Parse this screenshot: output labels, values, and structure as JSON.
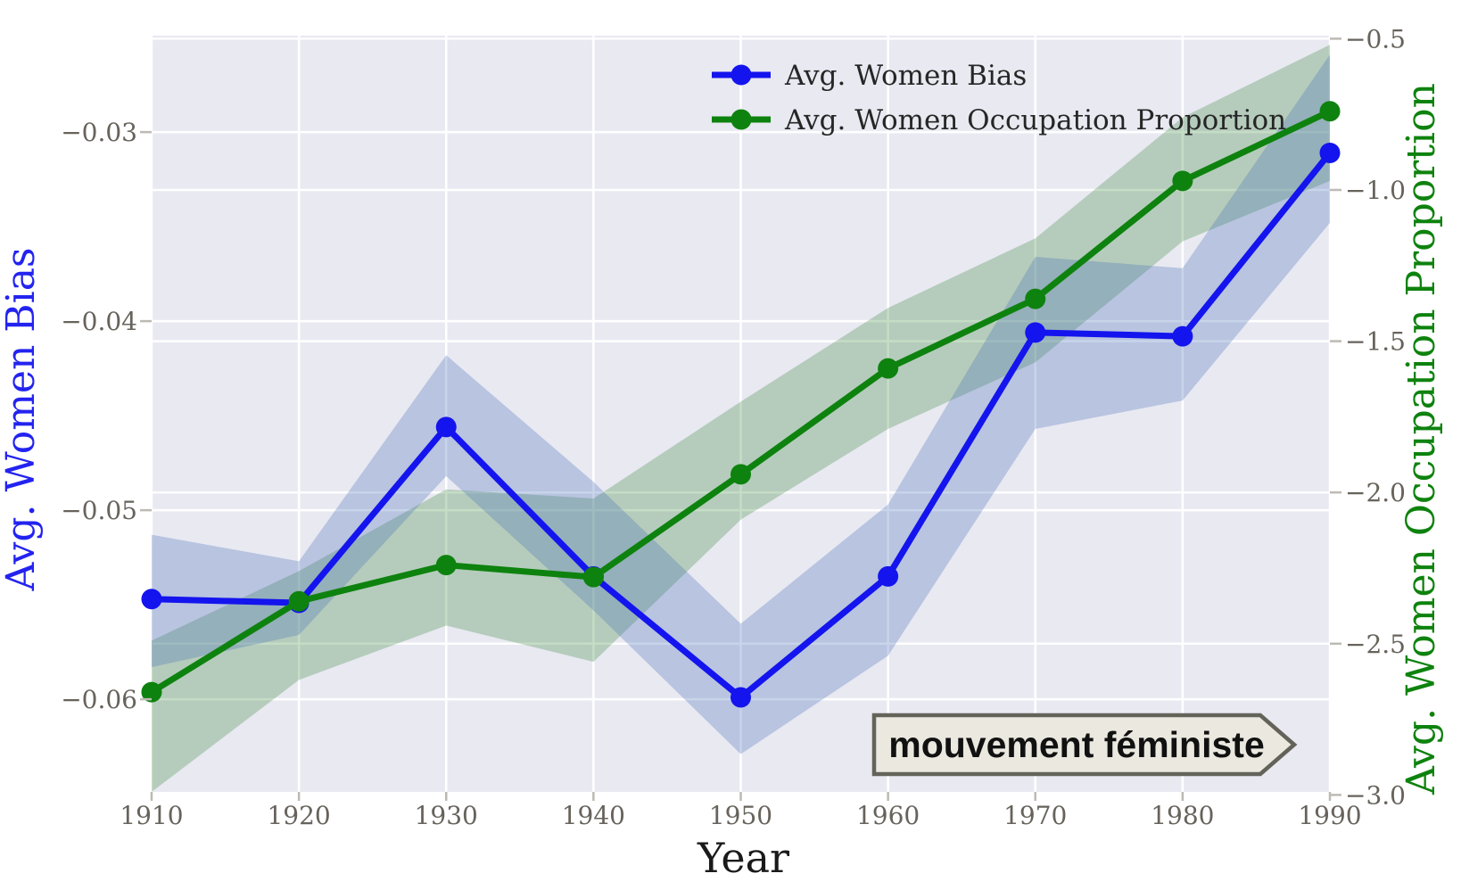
{
  "figure": {
    "background": "#ffffff",
    "plot_background": "#e9e9f2",
    "grid_color": "#ffffff",
    "tick_color": "#67635c",
    "tick_mark_color": "#bdbab4"
  },
  "chart_data": {
    "type": "line",
    "x": [
      1910,
      1920,
      1930,
      1940,
      1950,
      1960,
      1970,
      1980,
      1990
    ],
    "x_tick_labels": [
      "1910",
      "1920",
      "1930",
      "1940",
      "1950",
      "1960",
      "1970",
      "1980",
      "1990"
    ],
    "xlabel": "Year",
    "xlim": [
      1910,
      1990
    ],
    "grid": true,
    "left_axis": {
      "label": "Avg. Women Bias",
      "color": "#2323f0",
      "ylim": [
        -0.0649,
        -0.0249
      ],
      "ticks": [
        -0.03,
        -0.04,
        -0.05,
        -0.06
      ],
      "tick_labels": [
        "−0.03",
        "−0.04",
        "−0.05",
        "−0.06"
      ]
    },
    "right_axis": {
      "label": "Avg. Women Occupation Proportion",
      "color": "#0e820e",
      "ylim": [
        -2.99,
        -0.49
      ],
      "ticks": [
        -0.5,
        -1.0,
        -1.5,
        -2.0,
        -2.5,
        -3.0
      ],
      "tick_labels": [
        "−0.5",
        "−1.0",
        "−1.5",
        "−2.0",
        "−2.5",
        "−3.0"
      ]
    },
    "series": [
      {
        "name": "Avg. Women Occupation Proportion",
        "axis": "right",
        "color": "#0e820e",
        "band_color": "#3f8c3f",
        "band_opacity": 0.3,
        "values": [
          -2.66,
          -2.36,
          -2.24,
          -2.28,
          -1.94,
          -1.59,
          -1.36,
          -0.97,
          -0.74
        ],
        "band_upper": [
          -2.49,
          -2.26,
          -1.99,
          -2.02,
          -1.7,
          -1.39,
          -1.16,
          -0.76,
          -0.52
        ],
        "band_lower": [
          -3.04,
          -2.62,
          -2.44,
          -2.56,
          -2.09,
          -1.79,
          -1.57,
          -1.17,
          -0.97
        ]
      },
      {
        "name": "Avg. Women Bias",
        "axis": "left",
        "color": "#1414ee",
        "band_color": "#4a6fb5",
        "band_opacity": 0.3,
        "values": [
          -0.0547,
          -0.0549,
          -0.0456,
          -0.0535,
          -0.0599,
          -0.0535,
          -0.0406,
          -0.0408,
          -0.0311
        ],
        "band_upper": [
          -0.0513,
          -0.0527,
          -0.0418,
          -0.0485,
          -0.056,
          -0.0497,
          -0.0366,
          -0.0372,
          -0.0259
        ],
        "band_lower": [
          -0.0583,
          -0.0566,
          -0.0482,
          -0.0553,
          -0.0629,
          -0.0577,
          -0.0457,
          -0.0442,
          -0.0348
        ]
      }
    ],
    "legend": {
      "entries": [
        {
          "label": "Avg. Women Bias",
          "color": "#1414ee"
        },
        {
          "label": "Avg. Women Occupation Proportion",
          "color": "#0e820e"
        }
      ],
      "text_color": "#262626",
      "position": "upper center"
    },
    "annotation": {
      "text": "mouvement féministe",
      "fill": "#eae8df",
      "border": "#63635a",
      "text_color": "#111111"
    }
  }
}
